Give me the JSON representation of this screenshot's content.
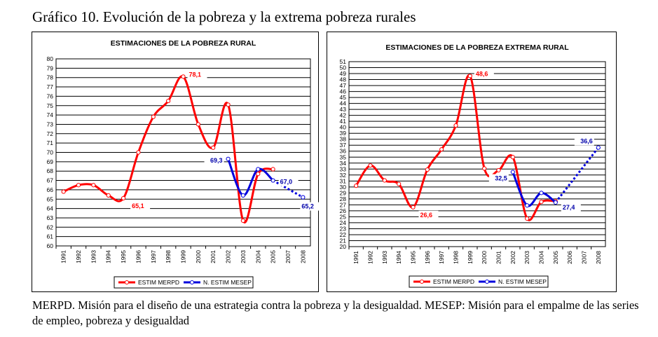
{
  "page_title": "Gráfico 10. Evolución de la pobreza y la extrema pobreza rurales",
  "caption": "MERPD. Misión para el diseño de una estrategia contra la pobreza y la desigualdad. MESEP: Misión para el empalme de las series de empleo, pobreza y desigualdad",
  "colors": {
    "merpd": "#ff0000",
    "mesep": "#0000dd",
    "label_merpd": "#ff0000",
    "label_mesep": "#0000aa"
  },
  "chart_data": [
    {
      "type": "line",
      "title": "ESTIMACIONES DE LA POBREZA RURAL",
      "categories": [
        "1991",
        "1992",
        "1993",
        "1994",
        "1995",
        "1996",
        "1997",
        "1998",
        "1999",
        "2000",
        "2001",
        "2002",
        "2003",
        "2004",
        "2005",
        "2007",
        "2008"
      ],
      "ylim": [
        60,
        80
      ],
      "ystep": 1,
      "grid": true,
      "legend": "bottom",
      "series": [
        {
          "name": "ESTIM MERPD",
          "color": "#ff0000",
          "values": [
            65.8,
            66.5,
            66.5,
            65.4,
            65.1,
            70.0,
            73.8,
            75.5,
            78.1,
            73.0,
            70.5,
            75.1,
            62.7,
            67.7,
            68.2,
            null,
            null
          ]
        },
        {
          "name": "N. ESTIM MESEP",
          "color": "#0000dd",
          "values": [
            null,
            null,
            null,
            null,
            null,
            null,
            null,
            null,
            null,
            null,
            null,
            69.3,
            65.4,
            68.2,
            67.0,
            null,
            65.2
          ],
          "dotted_from_index": 14
        }
      ],
      "annotations": [
        {
          "text": "78,1",
          "series": 0,
          "index": 8
        },
        {
          "text": "65,1",
          "series": 0,
          "index": 4
        },
        {
          "text": "69,3",
          "series": 1,
          "index": 11
        },
        {
          "text": "67,0",
          "series": 1,
          "index": 14
        },
        {
          "text": "65,2",
          "series": 1,
          "index": 16
        }
      ]
    },
    {
      "type": "line",
      "title": "ESTIMACIONES DE LA POBREZA EXTREMA RURAL",
      "categories": [
        "1991",
        "1992",
        "1993",
        "1994",
        "1995",
        "1996",
        "1997",
        "1998",
        "1999",
        "2000",
        "2001",
        "2002",
        "2003",
        "2004",
        "2005",
        "2006",
        "2007",
        "2008"
      ],
      "ylim": [
        20,
        51
      ],
      "ystep": 1,
      "grid": true,
      "legend": "bottom",
      "series": [
        {
          "name": "ESTIM MERPD",
          "color": "#ff0000",
          "values": [
            30.2,
            33.6,
            31.1,
            30.5,
            26.6,
            32.9,
            36.3,
            40.3,
            48.6,
            33.1,
            32.8,
            35.0,
            24.7,
            27.5,
            27.6,
            null,
            null,
            null
          ]
        },
        {
          "name": "N. ESTIM MESEP",
          "color": "#0000dd",
          "values": [
            null,
            null,
            null,
            null,
            null,
            null,
            null,
            null,
            null,
            null,
            null,
            32.5,
            26.9,
            29.0,
            27.4,
            null,
            null,
            36.6
          ],
          "dotted_from_index": 14
        }
      ],
      "annotations": [
        {
          "text": "48,6",
          "series": 0,
          "index": 8
        },
        {
          "text": "26,6",
          "series": 0,
          "index": 4
        },
        {
          "text": "32,5",
          "series": 1,
          "index": 11
        },
        {
          "text": "27,4",
          "series": 1,
          "index": 14
        },
        {
          "text": "36,6",
          "series": 1,
          "index": 17
        }
      ]
    }
  ]
}
